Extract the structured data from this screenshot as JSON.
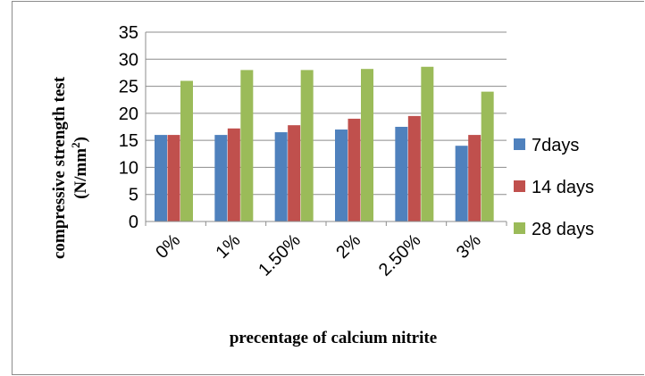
{
  "chart_data": {
    "type": "bar",
    "title": "",
    "xlabel": "precentage of  calcium nitrite",
    "ylabel_line1": "compressive strength test",
    "ylabel_line2_main": "(N/mm",
    "ylabel_line2_sup": "2",
    "ylabel_line2_end": ")",
    "categories": [
      "0%",
      "1%",
      "1.50%",
      "2%",
      "2.50%",
      "3%"
    ],
    "ylim": [
      0,
      35
    ],
    "yticks": [
      0,
      5,
      10,
      15,
      20,
      25,
      30,
      35
    ],
    "grid": true,
    "legend_position": "right",
    "series": [
      {
        "name": "7days",
        "color": "#4f81bd",
        "values": [
          16,
          16,
          16.5,
          17,
          17.5,
          14
        ]
      },
      {
        "name": "14 days",
        "color": "#c0504d",
        "values": [
          16,
          17.2,
          17.8,
          19,
          19.5,
          16
        ]
      },
      {
        "name": "28 days",
        "color": "#9bbb59",
        "values": [
          26,
          28,
          28,
          28.2,
          28.6,
          24
        ]
      }
    ]
  }
}
